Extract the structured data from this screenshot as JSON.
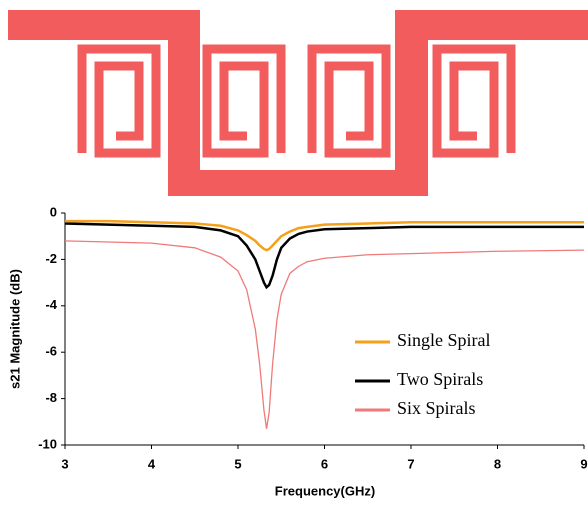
{
  "chart_data": {
    "type": "line",
    "x_label": "Frequency(GHz)",
    "y_label": "s21 Magnitude (dB)",
    "x": [
      3,
      3.5,
      4,
      4.5,
      4.8,
      5,
      5.1,
      5.2,
      5.25,
      5.3,
      5.33,
      5.36,
      5.4,
      5.45,
      5.5,
      5.6,
      5.7,
      5.8,
      6,
      6.5,
      7,
      8,
      9
    ],
    "series": [
      {
        "name": "Single Spiral",
        "color": "#f5a01a",
        "values": [
          -0.35,
          -0.35,
          -0.4,
          -0.45,
          -0.55,
          -0.75,
          -0.95,
          -1.2,
          -1.4,
          -1.55,
          -1.6,
          -1.55,
          -1.4,
          -1.2,
          -1.0,
          -0.8,
          -0.65,
          -0.6,
          -0.5,
          -0.45,
          -0.4,
          -0.4,
          -0.4
        ]
      },
      {
        "name": "Two Spirals",
        "color": "#000000",
        "values": [
          -0.45,
          -0.5,
          -0.55,
          -0.6,
          -0.75,
          -1.0,
          -1.4,
          -2.0,
          -2.5,
          -3.0,
          -3.2,
          -3.1,
          -2.7,
          -2.0,
          -1.5,
          -1.1,
          -0.9,
          -0.8,
          -0.7,
          -0.65,
          -0.6,
          -0.6,
          -0.6
        ]
      },
      {
        "name": "Six Spirals",
        "color": "#f07a7a",
        "values": [
          -1.2,
          -1.25,
          -1.3,
          -1.5,
          -1.9,
          -2.5,
          -3.3,
          -5.0,
          -6.5,
          -8.5,
          -9.3,
          -8.6,
          -6.5,
          -4.6,
          -3.5,
          -2.6,
          -2.3,
          -2.1,
          -1.95,
          -1.8,
          -1.75,
          -1.65,
          -1.6
        ]
      }
    ],
    "xlim": [
      3,
      9
    ],
    "xticks": [
      3,
      4,
      5,
      6,
      7,
      8,
      9
    ],
    "ylim": [
      -10,
      0
    ],
    "yticks": [
      0,
      -2,
      -4,
      -6,
      -8,
      -10
    ]
  }
}
